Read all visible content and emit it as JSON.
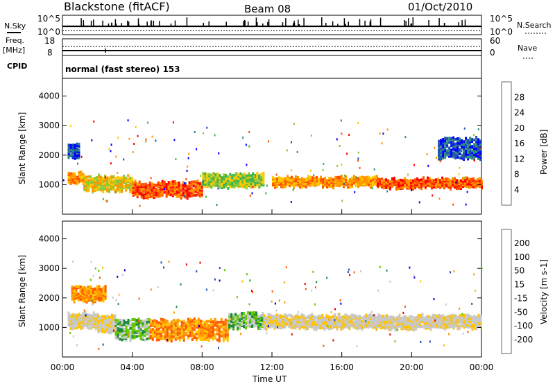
{
  "header": {
    "station": "Blackstone (fitACF)",
    "beam": "Beam 08",
    "date": "01/Oct/2010"
  },
  "top_panels": {
    "nsky_label": "N.Sky",
    "nsky_ticks": [
      "10^5",
      "10^0"
    ],
    "nsearch_label": "N.Search",
    "nsearch_ticks": [
      "10^5",
      "10^0"
    ],
    "freq_label": "Freq.",
    "freq_unit": "[MHz]",
    "freq_ticks": [
      "18",
      "8"
    ],
    "nave_label": "Nave",
    "nave_ticks": [
      "60",
      "0"
    ],
    "cpid_label": "CPID",
    "cpid_text": "normal (fast stereo) 153"
  },
  "colors": {
    "power": [
      "#0000ff",
      "#1e50b4",
      "#2d8c82",
      "#3cb44b",
      "#8cc832",
      "#ffc800",
      "#ff9600",
      "#ff5000",
      "#ff0000"
    ],
    "velocity": [
      "#e60000",
      "#ff5a00",
      "#ff9600",
      "#ffc300",
      "#c8c8c8",
      "#c8c8c8",
      "#64c800",
      "#1e8c3c",
      "#1e50b4",
      "#0000d2"
    ]
  },
  "chart_data": [
    {
      "type": "heatmap",
      "name": "power",
      "ylabel": "Slant Range [km]",
      "yticks": [
        "1000",
        "2000",
        "3000",
        "4000"
      ],
      "ylim": [
        0,
        4600
      ],
      "colorbar_label": "Power [dB]",
      "colorbar_ticks": [
        "4",
        "8",
        "12",
        "16",
        "20",
        "24",
        "28"
      ],
      "bands": [
        {
          "start_h": 0.3,
          "end_h": 1.2,
          "center_km": 1300,
          "width_km": 350,
          "level": 6
        },
        {
          "start_h": 1.2,
          "end_h": 4.0,
          "center_km": 1100,
          "width_km": 500,
          "level": 5
        },
        {
          "start_h": 4.0,
          "end_h": 8.0,
          "center_km": 900,
          "width_km": 500,
          "level": 7
        },
        {
          "start_h": 8.0,
          "end_h": 11.5,
          "center_km": 1200,
          "width_km": 450,
          "level": 4
        },
        {
          "start_h": 12.0,
          "end_h": 18.0,
          "center_km": 1150,
          "width_km": 300,
          "level": 6
        },
        {
          "start_h": 18.0,
          "end_h": 24.0,
          "center_km": 1100,
          "width_km": 300,
          "level": 7
        },
        {
          "start_h": 0.3,
          "end_h": 1.0,
          "center_km": 2200,
          "width_km": 500,
          "level": 1
        },
        {
          "start_h": 21.5,
          "end_h": 24.0,
          "center_km": 2300,
          "width_km": 700,
          "level": 1
        }
      ]
    },
    {
      "type": "heatmap",
      "name": "velocity",
      "ylabel": "Slant Range [km]",
      "yticks": [
        "1000",
        "2000",
        "3000",
        "4000"
      ],
      "ylim": [
        0,
        4600
      ],
      "colorbar_label": "Velocity [m s-1]",
      "colorbar_ticks": [
        "-200",
        "-100",
        "-50",
        "-15",
        "15",
        "50",
        "100",
        "200"
      ],
      "bands": [
        {
          "start_h": 0.3,
          "end_h": 2.0,
          "center_km": 1300,
          "width_km": 500,
          "level": 4
        },
        {
          "start_h": 2.0,
          "end_h": 3.0,
          "center_km": 1200,
          "width_km": 600,
          "level": 4
        },
        {
          "start_h": 3.0,
          "end_h": 5.0,
          "center_km": 1000,
          "width_km": 700,
          "level": 6
        },
        {
          "start_h": 5.0,
          "end_h": 9.5,
          "center_km": 1000,
          "width_km": 700,
          "level": 2
        },
        {
          "start_h": 9.5,
          "end_h": 11.5,
          "center_km": 1300,
          "width_km": 500,
          "level": 6
        },
        {
          "start_h": 11.5,
          "end_h": 24.0,
          "center_km": 1250,
          "width_km": 450,
          "level": 4
        },
        {
          "start_h": 0.5,
          "end_h": 2.5,
          "center_km": 2200,
          "width_km": 500,
          "level": 2
        }
      ]
    }
  ],
  "x_axis": {
    "label": "Time UT",
    "ticks": [
      "00:00",
      "04:00",
      "08:00",
      "12:00",
      "16:00",
      "20:00",
      "00:00"
    ]
  }
}
